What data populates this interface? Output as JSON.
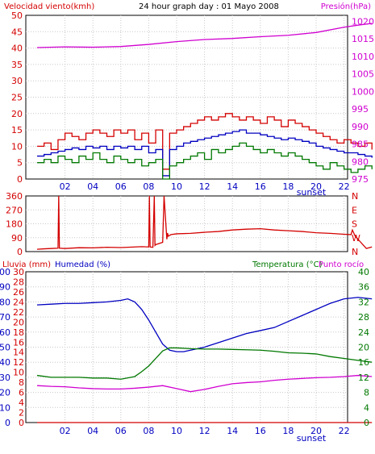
{
  "header": {
    "left_label": "Velocidad viento(kmh)",
    "center_title": "24 hour graph day : 01 Mayo 2008",
    "right_label": "Presión(hPa)"
  },
  "colors": {
    "red": "#d40000",
    "green": "#007800",
    "blue": "#0000c0",
    "magenta": "#d000d0",
    "dark_red": "#8b0000"
  },
  "chart_data": [
    {
      "type": "line",
      "name": "wind-panel",
      "x_ticks": [
        "02",
        "04",
        "06",
        "08",
        "10",
        "12",
        "14",
        "16",
        "18",
        "20",
        "22"
      ],
      "x_note": "sunset",
      "y_left": {
        "label": "Velocidad viento(kmh)",
        "ticks": [
          0,
          5,
          10,
          15,
          20,
          25,
          30,
          35,
          40,
          45,
          50
        ],
        "range": [
          0,
          50
        ]
      },
      "y_right": {
        "label": "Presión(hPa)",
        "ticks": [
          975,
          980,
          985,
          990,
          995,
          1000,
          1005,
          1010,
          1015,
          1020
        ],
        "range": [
          975,
          1021.7
        ]
      },
      "series": [
        {
          "key": "gust",
          "color": "#d40000",
          "axis": "left",
          "x": [
            0,
            0.5,
            1,
            1.5,
            2,
            2.5,
            3,
            3.5,
            4,
            4.5,
            5,
            5.5,
            6,
            6.5,
            7,
            7.5,
            8,
            8.5,
            9,
            9.5,
            10,
            10.5,
            11,
            11.5,
            12,
            12.5,
            13,
            13.5,
            14,
            14.5,
            15,
            15.5,
            16,
            16.5,
            17,
            17.5,
            18,
            18.5,
            19,
            19.5,
            20,
            20.5,
            21,
            21.5,
            22,
            22.5,
            23,
            23.5,
            24
          ],
          "values": [
            10,
            11,
            9,
            12,
            14,
            13,
            12,
            14,
            15,
            14,
            13,
            15,
            14,
            15,
            12,
            14,
            11,
            15,
            3,
            14,
            15,
            16,
            17,
            18,
            19,
            18,
            19,
            20,
            19,
            18,
            19,
            18,
            17,
            19,
            18,
            16,
            18,
            17,
            16,
            15,
            14,
            13,
            12,
            11,
            12,
            11,
            10,
            11,
            9
          ]
        },
        {
          "key": "average",
          "color": "#0000c0",
          "axis": "left",
          "x": [
            0,
            0.5,
            1,
            1.5,
            2,
            2.5,
            3,
            3.5,
            4,
            4.5,
            5,
            5.5,
            6,
            6.5,
            7,
            7.5,
            8,
            8.5,
            9,
            9.5,
            10,
            10.5,
            11,
            11.5,
            12,
            12.5,
            13,
            13.5,
            14,
            14.5,
            15,
            15.5,
            16,
            16.5,
            17,
            17.5,
            18,
            18.5,
            19,
            19.5,
            20,
            20.5,
            21,
            21.5,
            22,
            22.5,
            23,
            23.5,
            24
          ],
          "values": [
            7,
            7.5,
            8,
            8.5,
            9,
            9.5,
            9,
            10,
            9.5,
            10,
            9,
            10,
            9.5,
            10,
            9,
            10,
            8,
            9,
            1,
            9,
            10,
            11,
            11.5,
            12,
            12.5,
            13,
            13.5,
            14,
            14.5,
            15,
            14,
            14,
            13.5,
            13,
            12.5,
            12,
            12.5,
            12,
            11.5,
            11,
            10,
            9.5,
            9,
            8.5,
            8,
            8,
            7.5,
            7,
            6.5
          ]
        },
        {
          "key": "wind",
          "color": "#007800",
          "axis": "left",
          "x": [
            0,
            0.5,
            1,
            1.5,
            2,
            2.5,
            3,
            3.5,
            4,
            4.5,
            5,
            5.5,
            6,
            6.5,
            7,
            7.5,
            8,
            8.5,
            9,
            9.5,
            10,
            10.5,
            11,
            11.5,
            12,
            12.5,
            13,
            13.5,
            14,
            14.5,
            15,
            15.5,
            16,
            16.5,
            17,
            17.5,
            18,
            18.5,
            19,
            19.5,
            20,
            20.5,
            21,
            21.5,
            22,
            22.5,
            23,
            23.5,
            24
          ],
          "values": [
            5,
            6,
            5,
            7,
            6,
            5,
            7,
            6,
            8,
            6,
            5,
            7,
            6,
            5,
            6,
            4,
            5,
            6,
            0,
            4,
            5,
            6,
            7,
            8,
            6,
            9,
            8,
            9,
            10,
            11,
            10,
            9,
            8,
            9,
            8,
            7,
            8,
            7,
            6,
            5,
            4,
            3,
            5,
            4,
            3,
            2,
            3,
            4,
            3
          ]
        },
        {
          "key": "pressure",
          "color": "#d000d0",
          "axis": "right",
          "x": [
            0,
            2,
            4,
            6,
            8,
            10,
            12,
            14,
            16,
            18,
            20,
            22,
            23,
            24
          ],
          "values": [
            1012.5,
            1012.7,
            1012.6,
            1012.8,
            1013.4,
            1014.2,
            1014.8,
            1015.1,
            1015.6,
            1016.0,
            1016.8,
            1018.3,
            1018.9,
            1019.4
          ]
        }
      ]
    },
    {
      "type": "line",
      "name": "direction-panel",
      "y_left": {
        "ticks": [
          0,
          90,
          180,
          270,
          360
        ],
        "range": [
          0,
          360
        ]
      },
      "y_right": {
        "ticks": [
          "N",
          "W",
          "S",
          "E",
          "N"
        ]
      },
      "series": [
        {
          "key": "direction",
          "color": "#d40000",
          "x": [
            0,
            0.5,
            1,
            1.5,
            1.55,
            1.6,
            2,
            3,
            4,
            5,
            6,
            7,
            7.5,
            8,
            8.05,
            8.1,
            8.3,
            8.4,
            8.45,
            8.5,
            9,
            9.1,
            9.3,
            9.35,
            9.4,
            9.6,
            10,
            11,
            12,
            13,
            14,
            15,
            16,
            17,
            18,
            19,
            20,
            21,
            22,
            22.5,
            22.6,
            22.8,
            23,
            23.2,
            23.4,
            23.6,
            24
          ],
          "values": [
            15,
            18,
            20,
            22,
            360,
            22,
            20,
            25,
            24,
            28,
            26,
            30,
            32,
            30,
            360,
            30,
            28,
            360,
            40,
            45,
            60,
            360,
            80,
            120,
            100,
            110,
            115,
            118,
            125,
            130,
            140,
            145,
            148,
            140,
            135,
            130,
            122,
            118,
            112,
            110,
            140,
            100,
            80,
            60,
            40,
            20,
            30
          ]
        }
      ]
    },
    {
      "type": "line",
      "name": "weather-panel",
      "x_ticks": [
        "02",
        "04",
        "06",
        "08",
        "10",
        "12",
        "14",
        "16",
        "18",
        "20",
        "22"
      ],
      "x_note": "sunset",
      "labels": {
        "rain": "Lluvia (mm)",
        "humidity": "Humedad (%)",
        "temperature": "Temperatura (°C)",
        "dewpoint": "Punto rocío"
      },
      "y_rain": {
        "ticks": [
          0,
          2,
          4,
          6,
          8,
          10,
          12,
          14,
          16,
          18,
          20,
          22,
          24,
          26,
          28,
          30
        ],
        "range": [
          0,
          30
        ]
      },
      "y_humidity": {
        "ticks": [
          0,
          10,
          20,
          30,
          40,
          50,
          60,
          70,
          80,
          90,
          100
        ],
        "range": [
          0,
          100
        ]
      },
      "y_temperature": {
        "ticks": [
          0,
          4,
          8,
          12,
          16,
          20,
          24,
          28,
          32,
          36,
          40
        ],
        "range": [
          0,
          40
        ]
      },
      "series": [
        {
          "key": "humidity",
          "color": "#0000c0",
          "axis": "humidity",
          "x": [
            0,
            1,
            2,
            3,
            4,
            5,
            6,
            6.5,
            7,
            7.5,
            8,
            8.5,
            9,
            9.5,
            10,
            10.5,
            11,
            12,
            13,
            14,
            15,
            16,
            17,
            18,
            19,
            20,
            21,
            22,
            23,
            24
          ],
          "values": [
            78,
            78.5,
            79,
            79,
            79.5,
            80,
            81,
            82,
            80,
            75,
            68,
            60,
            52,
            48,
            47,
            47,
            48,
            50,
            53,
            56,
            59,
            61,
            63,
            67,
            71,
            75,
            79,
            82,
            83,
            82
          ]
        },
        {
          "key": "temperature",
          "color": "#007800",
          "axis": "temperature",
          "x": [
            0,
            1,
            2,
            3,
            4,
            5,
            6,
            7,
            7.5,
            8,
            8.5,
            9,
            9.5,
            10,
            11,
            12,
            13,
            14,
            15,
            16,
            17,
            18,
            19,
            20,
            21,
            22,
            23,
            24
          ],
          "values": [
            12.5,
            12,
            12,
            12,
            11.8,
            11.8,
            11.5,
            12.2,
            13.5,
            15,
            17,
            19,
            19.8,
            19.8,
            19.6,
            19.5,
            19.5,
            19.4,
            19.3,
            19.2,
            18.9,
            18.5,
            18.4,
            18.2,
            17.5,
            17,
            16.5,
            16
          ]
        },
        {
          "key": "dewpoint",
          "color": "#d000d0",
          "axis": "temperature",
          "x": [
            0,
            1,
            2,
            3,
            4,
            5,
            6,
            7,
            8,
            9,
            10,
            11,
            12,
            13,
            14,
            15,
            16,
            17,
            18,
            19,
            20,
            21,
            22,
            23,
            24
          ],
          "values": [
            9.8,
            9.6,
            9.5,
            9.2,
            9.0,
            8.9,
            8.9,
            9.1,
            9.4,
            9.8,
            9.0,
            8.2,
            8.8,
            9.6,
            10.3,
            10.6,
            10.8,
            11.2,
            11.5,
            11.7,
            11.9,
            12.0,
            12.2,
            12.5,
            12.2
          ]
        },
        {
          "key": "rain",
          "color": "#d40000",
          "axis": "rain",
          "x": [
            0,
            24
          ],
          "values": [
            0,
            0
          ]
        }
      ]
    }
  ]
}
